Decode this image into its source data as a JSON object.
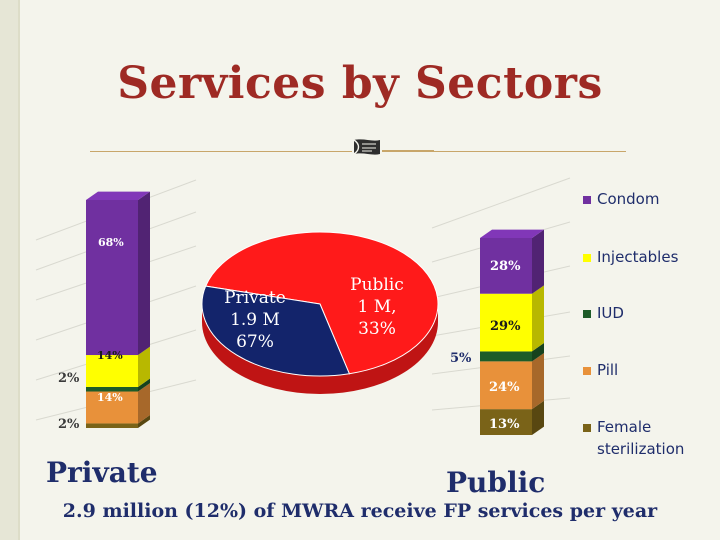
{
  "slide": {
    "title": "Services by Sectors",
    "footer": "2.9 million (12%) of MWRA receive FP services per year",
    "private_label": "Private",
    "public_label": "Public"
  },
  "colors": {
    "title": "#9e2a24",
    "text_blue": "#1f2d6b",
    "condom": "#7030a0",
    "injectables": "#ffff00",
    "iud": "#1e5c28",
    "pill": "#e8913a",
    "female_sterilization": "#7a6318",
    "pie_private": "#ff1a1a",
    "pie_public": "#13246b"
  },
  "chart_data": [
    {
      "type": "bar",
      "title": "Private",
      "stacked": true,
      "categories": [
        "Private"
      ],
      "series": [
        {
          "name": "Female sterilization",
          "values": [
            2
          ],
          "label": "2%"
        },
        {
          "name": "Pill",
          "values": [
            14
          ],
          "label": "14%"
        },
        {
          "name": "IUD",
          "values": [
            2
          ],
          "label": "2%"
        },
        {
          "name": "Injectables",
          "values": [
            14
          ],
          "label": "14%"
        },
        {
          "name": "Condom",
          "values": [
            68
          ],
          "label": "68%"
        }
      ]
    },
    {
      "type": "pie",
      "slices": [
        {
          "name": "Private",
          "label_lines": [
            "Private",
            "1.9 M",
            "67%"
          ],
          "value": 67
        },
        {
          "name": "Public",
          "label_lines": [
            "Public",
            "1 M,",
            "33%"
          ],
          "value": 33
        }
      ]
    },
    {
      "type": "bar",
      "title": "Public",
      "stacked": true,
      "categories": [
        "Public"
      ],
      "series": [
        {
          "name": "Female sterilization",
          "values": [
            13
          ],
          "label": "13%"
        },
        {
          "name": "Pill",
          "values": [
            24
          ],
          "label": "24%"
        },
        {
          "name": "IUD",
          "values": [
            5
          ],
          "label": "5%"
        },
        {
          "name": "Injectables",
          "values": [
            29
          ],
          "label": "29%"
        },
        {
          "name": "Condom",
          "values": [
            28
          ],
          "label": "28%"
        }
      ]
    }
  ],
  "legend": {
    "position": "right",
    "items": [
      {
        "label": "Condom",
        "color_key": "condom"
      },
      {
        "label": "Injectables",
        "color_key": "injectables"
      },
      {
        "label": "IUD",
        "color_key": "iud"
      },
      {
        "label": "Pill",
        "color_key": "pill"
      },
      {
        "label": "Female sterilization",
        "lines": [
          "Female",
          "sterilization"
        ],
        "color_key": "female_sterilization"
      }
    ]
  }
}
